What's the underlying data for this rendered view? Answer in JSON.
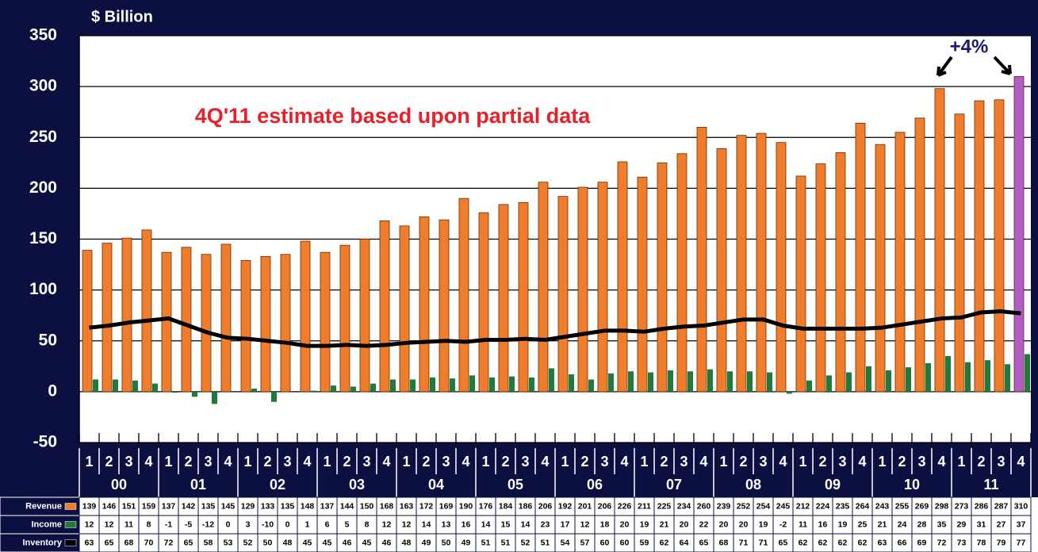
{
  "chart_data": {
    "type": "bar",
    "y_label": "$ Billion",
    "annotation": "4Q'11 estimate based upon partial data",
    "change_label": "+4%",
    "categories": [
      "1",
      "2",
      "3",
      "4",
      "1",
      "2",
      "3",
      "4",
      "1",
      "2",
      "3",
      "4",
      "1",
      "2",
      "3",
      "4",
      "1",
      "2",
      "3",
      "4",
      "1",
      "2",
      "3",
      "4",
      "1",
      "2",
      "3",
      "4",
      "1",
      "2",
      "3",
      "4",
      "1",
      "2",
      "3",
      "4",
      "1",
      "2",
      "3",
      "4",
      "1",
      "2",
      "3",
      "4",
      "1",
      "2",
      "3",
      "4"
    ],
    "year_labels": [
      "00",
      "01",
      "02",
      "03",
      "04",
      "05",
      "06",
      "07",
      "08",
      "09",
      "10",
      "11"
    ],
    "series": [
      {
        "name": "Revenue",
        "color": "#f07d2c",
        "values": [
          139,
          146,
          151,
          159,
          137,
          142,
          135,
          145,
          129,
          133,
          135,
          148,
          137,
          144,
          150,
          168,
          163,
          172,
          169,
          190,
          176,
          184,
          186,
          206,
          192,
          201,
          206,
          226,
          211,
          225,
          234,
          260,
          239,
          252,
          254,
          245,
          212,
          224,
          235,
          264,
          243,
          255,
          269,
          298,
          273,
          286,
          287,
          310
        ]
      },
      {
        "name": "Income",
        "color": "#1f7a3c",
        "values": [
          12,
          12,
          11,
          8,
          -1,
          -5,
          -12,
          0,
          3,
          -10,
          0,
          1,
          6,
          5,
          8,
          12,
          12,
          14,
          13,
          16,
          14,
          15,
          14,
          23,
          17,
          12,
          18,
          20,
          19,
          21,
          20,
          22,
          20,
          20,
          19,
          -2,
          11,
          16,
          19,
          25,
          21,
          24,
          28,
          35,
          29,
          31,
          27,
          37
        ]
      },
      {
        "name": "Inventory",
        "color": "#000000",
        "type": "line",
        "values": [
          63,
          65,
          68,
          70,
          72,
          65,
          58,
          53,
          52,
          50,
          48,
          45,
          45,
          46,
          45,
          46,
          48,
          49,
          50,
          49,
          51,
          51,
          52,
          51,
          54,
          57,
          60,
          60,
          59,
          62,
          64,
          65,
          68,
          71,
          71,
          65,
          62,
          62,
          62,
          62,
          63,
          66,
          69,
          72,
          73,
          78,
          79,
          77
        ]
      }
    ],
    "highlight_last_color": "#b35ec7",
    "ylim": [
      -50,
      350
    ],
    "yticks": [
      -50,
      0,
      50,
      100,
      150,
      200,
      250,
      300,
      350
    ],
    "grid": true
  }
}
